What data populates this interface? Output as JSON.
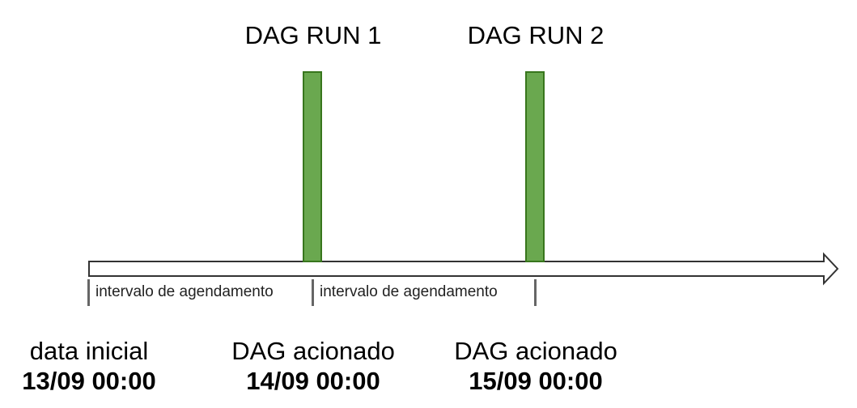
{
  "runs": [
    {
      "label": "DAG RUN 1"
    },
    {
      "label": "DAG RUN 2"
    }
  ],
  "intervals": [
    {
      "label": "intervalo de agendamento"
    },
    {
      "label": "intervalo de agendamento"
    }
  ],
  "points": [
    {
      "caption": "data inicial",
      "date": "13/09 00:00"
    },
    {
      "caption": "DAG acionado",
      "date": "14/09 00:00"
    },
    {
      "caption": "DAG acionado",
      "date": "15/09 00:00"
    }
  ],
  "colors": {
    "bar_fill": "#6aa84f",
    "bar_border": "#38761d",
    "tick": "#666666",
    "arrow_stroke": "#333333"
  }
}
